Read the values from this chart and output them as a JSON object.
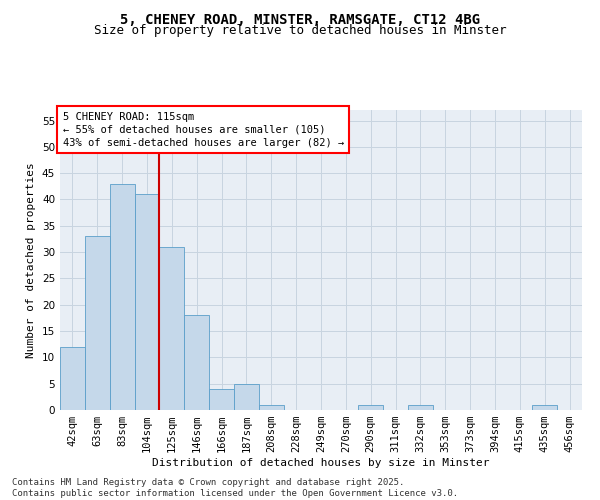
{
  "title_line1": "5, CHENEY ROAD, MINSTER, RAMSGATE, CT12 4BG",
  "title_line2": "Size of property relative to detached houses in Minster",
  "xlabel": "Distribution of detached houses by size in Minster",
  "ylabel": "Number of detached properties",
  "bar_labels": [
    "42sqm",
    "63sqm",
    "83sqm",
    "104sqm",
    "125sqm",
    "146sqm",
    "166sqm",
    "187sqm",
    "208sqm",
    "228sqm",
    "249sqm",
    "270sqm",
    "290sqm",
    "311sqm",
    "332sqm",
    "353sqm",
    "373sqm",
    "394sqm",
    "415sqm",
    "435sqm",
    "456sqm"
  ],
  "bar_values": [
    12,
    33,
    43,
    41,
    31,
    18,
    4,
    5,
    1,
    0,
    0,
    0,
    1,
    0,
    1,
    0,
    0,
    0,
    0,
    1,
    0
  ],
  "bar_color": "#c5d8ea",
  "bar_edge_color": "#5a9ec9",
  "vline_x": 3.5,
  "vline_color": "#cc0000",
  "annotation_line1": "5 CHENEY ROAD: 115sqm",
  "annotation_line2": "← 55% of detached houses are smaller (105)",
  "annotation_line3": "43% of semi-detached houses are larger (82) →",
  "ylim": [
    0,
    57
  ],
  "yticks": [
    0,
    5,
    10,
    15,
    20,
    25,
    30,
    35,
    40,
    45,
    50,
    55
  ],
  "grid_color": "#c8d4e0",
  "background_color": "#e8eef5",
  "footer_line1": "Contains HM Land Registry data © Crown copyright and database right 2025.",
  "footer_line2": "Contains public sector information licensed under the Open Government Licence v3.0.",
  "title_fontsize": 10,
  "subtitle_fontsize": 9,
  "axis_label_fontsize": 8,
  "tick_fontsize": 7.5,
  "annotation_fontsize": 7.5,
  "footer_fontsize": 6.5
}
